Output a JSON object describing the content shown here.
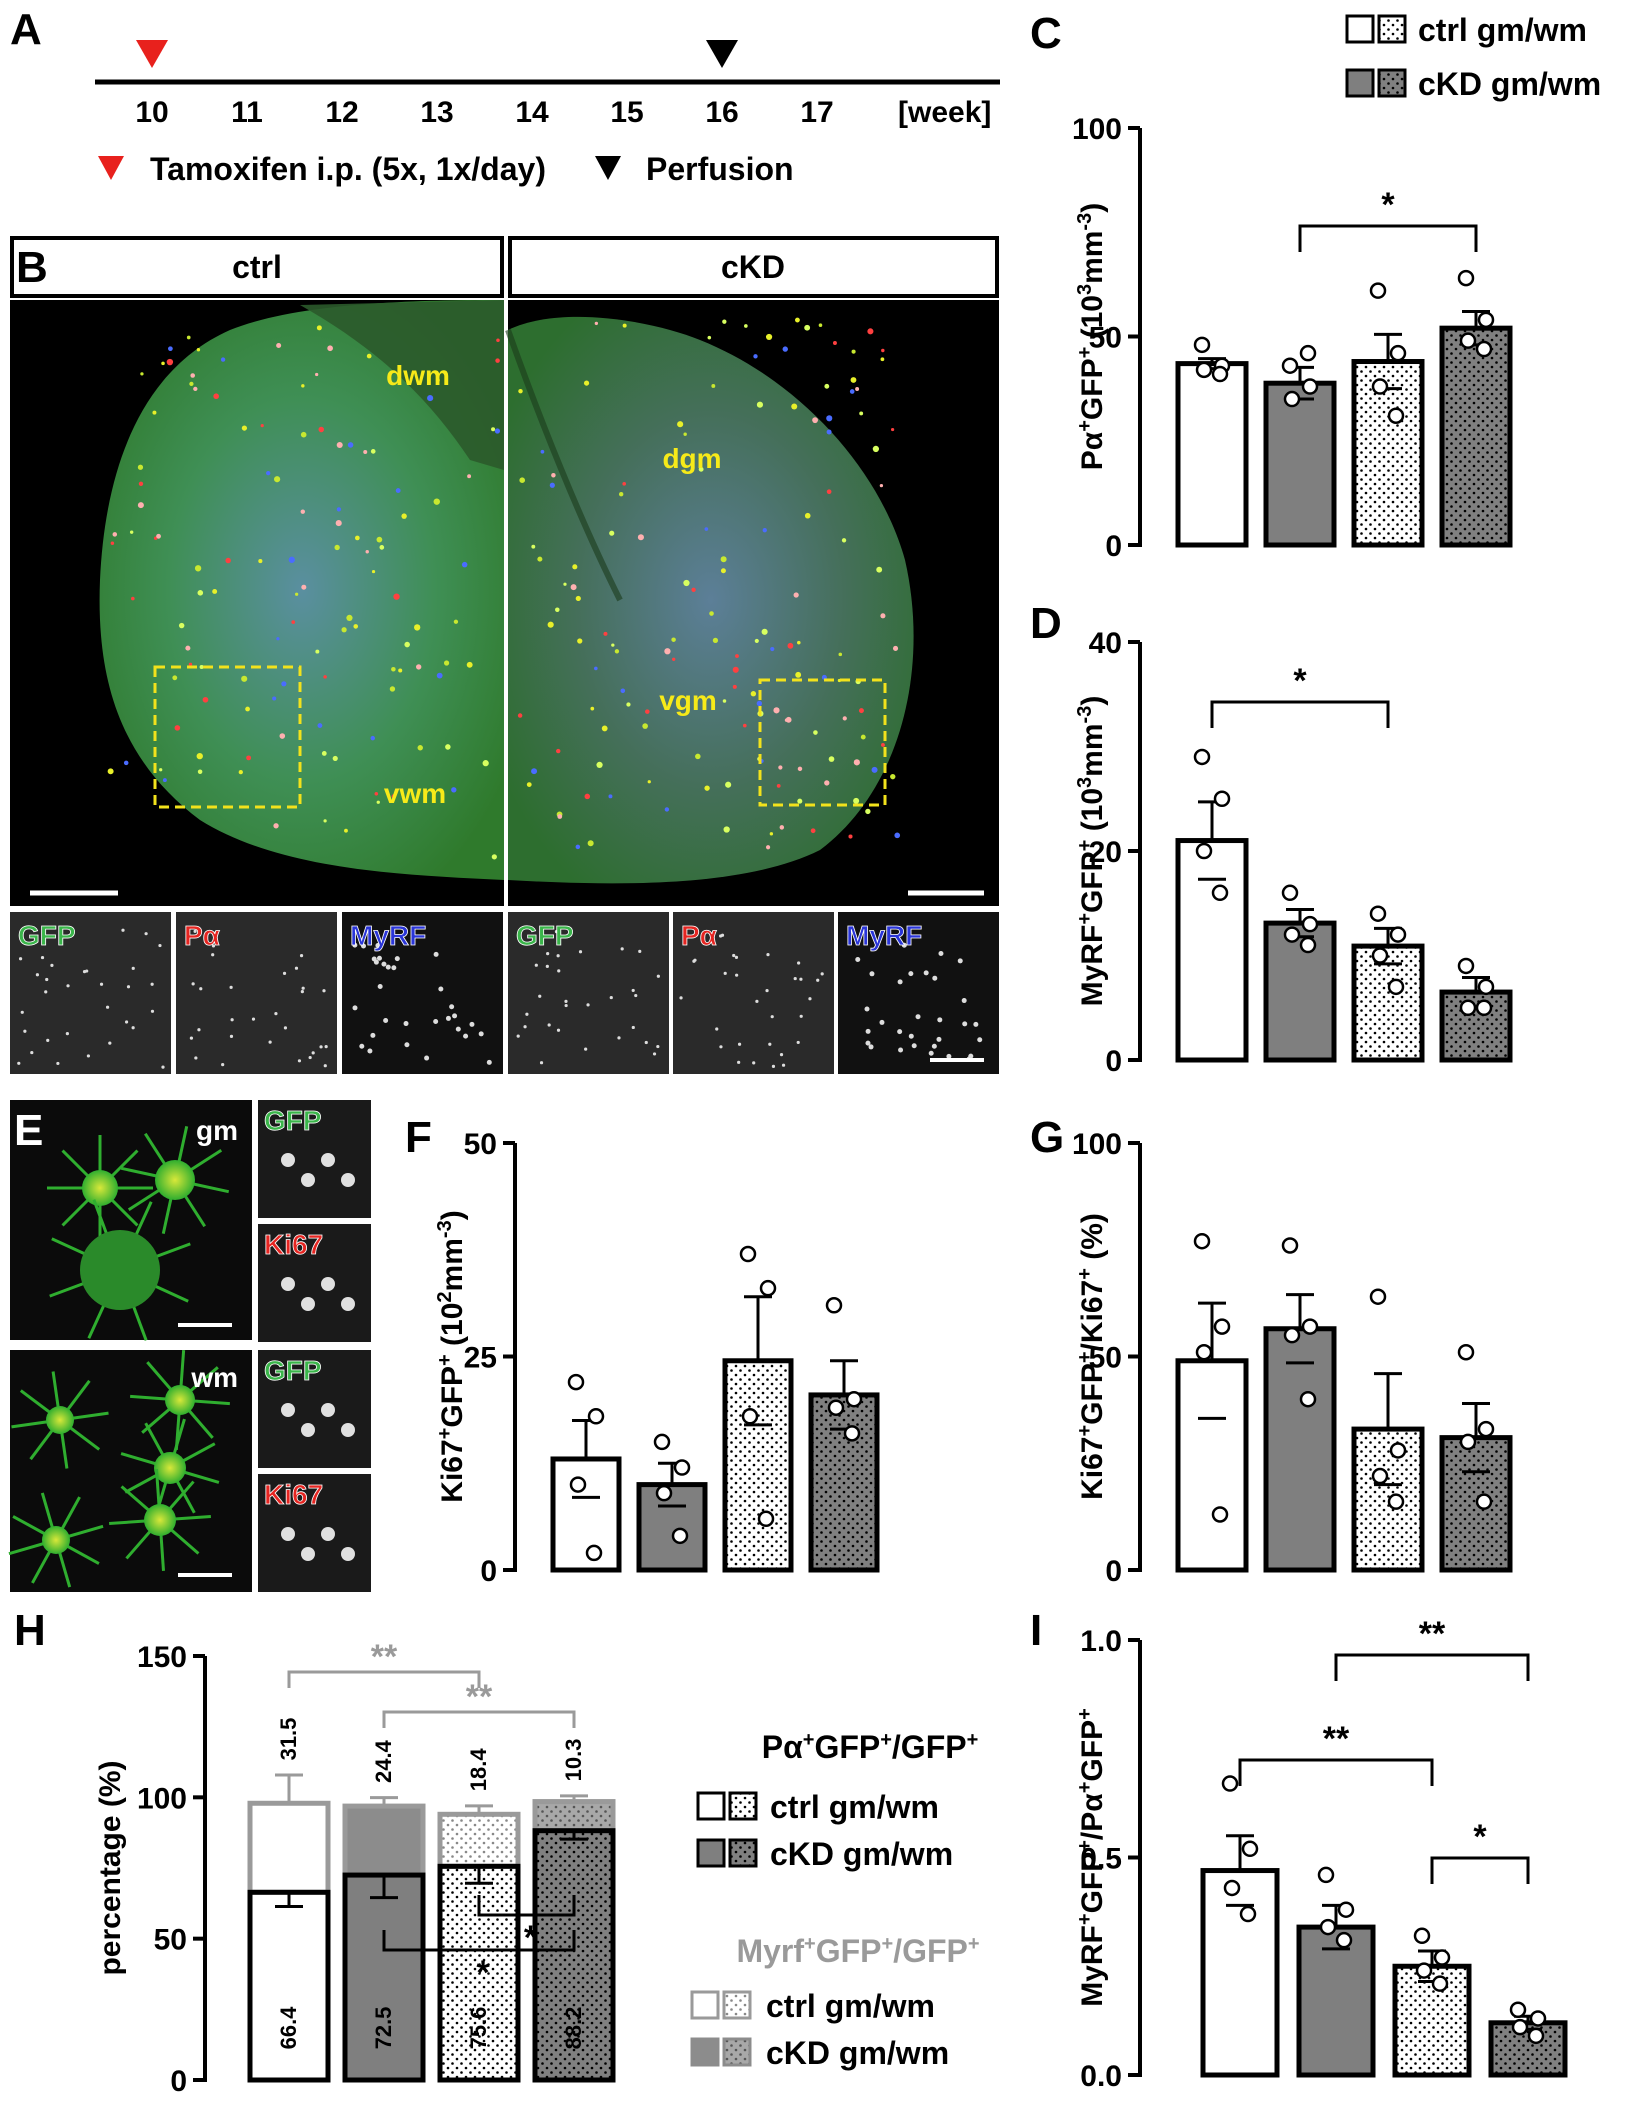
{
  "colors": {
    "ctrl_fill": "#ffffff",
    "ckd_fill": "#7f7f7f",
    "ckd_wm_fill": "#8c8c8c",
    "grey_text": "#9a9a9a",
    "red_marker": "#e8211d",
    "box_yellow": "#f2e21c",
    "label_yellow": "#f7ea19",
    "gfp_green": "#3ab54a",
    "red_label": "#e52521",
    "blue_label": "#2a35d8"
  },
  "panel_labels": [
    "A",
    "B",
    "C",
    "D",
    "E",
    "F",
    "G",
    "H",
    "I"
  ],
  "timeline": {
    "weeks": [
      "10",
      "11",
      "12",
      "13",
      "14",
      "15",
      "16",
      "17"
    ],
    "unit": "[week]",
    "tamoxifen_week": 10,
    "perfusion_week": 16,
    "tamoxifen_label": "Tamoxifen i.p. (5x, 1x/day)",
    "perfusion_label": "Perfusion"
  },
  "micrograph_b": {
    "left_title": "ctrl",
    "right_title": "cKD",
    "left_regions": [
      "dwm",
      "vwm"
    ],
    "right_regions": [
      "dgm",
      "vgm"
    ],
    "channels": [
      "GFP",
      "Pα",
      "MyRF"
    ]
  },
  "micrograph_e": {
    "top_label": "gm",
    "bottom_label": "wm",
    "channels": [
      "GFP",
      "Ki67"
    ]
  },
  "legend_top": {
    "entries": [
      "ctrl gm/wm",
      "cKD gm/wm"
    ]
  },
  "legend_h": {
    "title1_parts": [
      "Pα",
      "+",
      "GFP",
      "+",
      "/GFP",
      "+"
    ],
    "entries1": [
      "ctrl gm/wm",
      "cKD gm/wm"
    ],
    "title2_parts": [
      "Myrf",
      "+",
      "GFP",
      "+",
      "/GFP",
      "+"
    ],
    "entries2": [
      "ctrl gm/wm",
      "cKD gm/wm"
    ]
  },
  "chart_data": [
    {
      "panel": "C",
      "type": "bar",
      "categories": [
        "ctrl gm",
        "cKD gm",
        "ctrl wm",
        "cKD wm"
      ],
      "values": [
        43.5,
        38.8,
        44.0,
        52.0
      ],
      "sem": [
        1.2,
        3.8,
        6.5,
        4.0
      ],
      "points": [
        [
          48,
          43,
          42,
          41
        ],
        [
          43,
          38,
          35,
          46
        ],
        [
          61,
          46,
          38,
          31
        ],
        [
          64,
          54,
          49,
          47
        ]
      ],
      "ylim": [
        0,
        100
      ],
      "yticks": [
        0,
        50,
        100
      ],
      "ylabel_parts": [
        "Pα",
        "+",
        "GFP",
        "+",
        " (10",
        "3",
        "mm",
        "-3",
        ")"
      ],
      "sig": [
        {
          "a": 1,
          "b": 3,
          "label": "*"
        }
      ]
    },
    {
      "panel": "D",
      "type": "bar",
      "categories": [
        "ctrl gm",
        "cKD gm",
        "ctrl wm",
        "cKD wm"
      ],
      "values": [
        21.0,
        13.1,
        10.9,
        6.5
      ],
      "sem": [
        3.7,
        1.3,
        1.7,
        1.4
      ],
      "points": [
        [
          29,
          25,
          20,
          16
        ],
        [
          16,
          13,
          12,
          11
        ],
        [
          14,
          12,
          10,
          7
        ],
        [
          9,
          7,
          5,
          5
        ]
      ],
      "ylim": [
        0,
        40
      ],
      "yticks": [
        0,
        20,
        40
      ],
      "ylabel_parts": [
        "MyRF",
        "+",
        "GFP",
        "+",
        " (10",
        "3",
        "mm",
        "-3",
        ")"
      ],
      "sig": [
        {
          "a": 0,
          "b": 2,
          "label": "*"
        }
      ]
    },
    {
      "panel": "F",
      "type": "bar",
      "categories": [
        "ctrl gm",
        "cKD gm",
        "ctrl wm",
        "cKD wm"
      ],
      "values": [
        13.0,
        10.0,
        24.5,
        20.5
      ],
      "sem": [
        4.5,
        2.5,
        7.5,
        4.0
      ],
      "points": [
        [
          22,
          18,
          10,
          2
        ],
        [
          15,
          12,
          9,
          4
        ],
        [
          37,
          33,
          18,
          6
        ],
        [
          31,
          20,
          19,
          16
        ]
      ],
      "ylim": [
        0,
        50
      ],
      "yticks": [
        0,
        25,
        50
      ],
      "ylabel_parts": [
        "Ki67",
        "+",
        "GFP",
        "+",
        " (10",
        "2",
        "mm",
        "-3",
        ")"
      ],
      "sig": []
    },
    {
      "panel": "G",
      "type": "bar",
      "categories": [
        "ctrl gm",
        "cKD gm",
        "ctrl wm",
        "cKD wm"
      ],
      "values": [
        49.0,
        56.5,
        33.0,
        31.0
      ],
      "sem": [
        13.5,
        8.0,
        13.0,
        8.0
      ],
      "points": [
        [
          77,
          57,
          51,
          13
        ],
        [
          76,
          57,
          55,
          40
        ],
        [
          64,
          28,
          22,
          16
        ],
        [
          51,
          33,
          30,
          16
        ]
      ],
      "ylim": [
        0,
        100
      ],
      "yticks": [
        0,
        50,
        100
      ],
      "ylabel_parts": [
        "Ki67",
        "+",
        "GFP",
        "+",
        "/Ki67",
        "+",
        " (%)"
      ],
      "sig": []
    },
    {
      "panel": "H",
      "type": "bar",
      "stacked": true,
      "categories": [
        "ctrl gm",
        "cKD gm",
        "ctrl wm",
        "cKD wm"
      ],
      "series": [
        {
          "name": "Pα⁺GFP⁺/GFP⁺",
          "values": [
            66.4,
            72.5,
            75.6,
            88.2
          ],
          "sem": [
            5,
            8,
            6,
            3
          ]
        },
        {
          "name": "Myrf⁺GFP⁺/GFP⁺",
          "values": [
            31.5,
            24.4,
            18.4,
            10.3
          ],
          "sem": [
            10,
            3,
            3,
            2
          ]
        }
      ],
      "ylim": [
        0,
        150
      ],
      "yticks": [
        0,
        50,
        100,
        150
      ],
      "ylabel": "percentage (%)",
      "inside_labels": [
        "66.4",
        "72.5",
        "75.6",
        "88.2"
      ],
      "top_labels": [
        "31.5",
        "24.4",
        "18.4",
        "10.3"
      ],
      "sig_grey": [
        "**",
        "**"
      ],
      "sig_black": [
        "*",
        "*"
      ]
    },
    {
      "panel": "I",
      "type": "bar",
      "categories": [
        "ctrl gm",
        "cKD gm",
        "ctrl wm",
        "cKD wm"
      ],
      "values": [
        0.47,
        0.34,
        0.25,
        0.12
      ],
      "sem": [
        0.08,
        0.05,
        0.035,
        0.015
      ],
      "points": [
        [
          0.67,
          0.52,
          0.43,
          0.37
        ],
        [
          0.46,
          0.38,
          0.34,
          0.31
        ],
        [
          0.32,
          0.27,
          0.24,
          0.21
        ],
        [
          0.15,
          0.13,
          0.11,
          0.09
        ]
      ],
      "ylim": [
        0,
        1.0
      ],
      "yticks": [
        "0.0",
        "0.5",
        "1.0"
      ],
      "ylabel_parts": [
        "MyRF",
        "+",
        "GFP",
        "+",
        "/Pα",
        "+",
        "GFP",
        "+"
      ],
      "sig": [
        {
          "a": 0,
          "b": 2,
          "label": "**"
        },
        {
          "a": 1,
          "b": 3,
          "label": "**"
        },
        {
          "a": 2,
          "b": 3,
          "label": "*"
        }
      ]
    }
  ]
}
